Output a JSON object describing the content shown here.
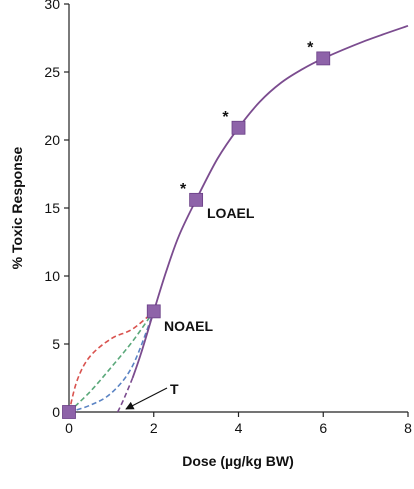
{
  "chart_data": {
    "type": "line",
    "xlabel": "Dose (µg/kg BW)",
    "ylabel": "% Toxic Response",
    "xlim": [
      0,
      8
    ],
    "ylim": [
      0,
      30
    ],
    "x_ticks": [
      "0",
      "2",
      "4",
      "6",
      "8"
    ],
    "y_ticks": [
      "0",
      "5",
      "10",
      "15",
      "20",
      "25",
      "30"
    ],
    "grid": false,
    "points": [
      {
        "x": 0,
        "y": 0,
        "star": false
      },
      {
        "x": 2,
        "y": 7.4,
        "star": false
      },
      {
        "x": 3,
        "y": 15.6,
        "star": true
      },
      {
        "x": 4,
        "y": 20.9,
        "star": true
      },
      {
        "x": 6,
        "y": 26,
        "star": true
      }
    ],
    "main_curve": [
      [
        1.15,
        0
      ],
      [
        1.3,
        1.0
      ],
      [
        1.5,
        2.5
      ],
      [
        1.7,
        4.3
      ],
      [
        2.0,
        7.4
      ],
      [
        2.3,
        10.4
      ],
      [
        2.6,
        13.0
      ],
      [
        3.0,
        15.6
      ],
      [
        3.5,
        18.6
      ],
      [
        4.0,
        20.9
      ],
      [
        4.5,
        22.8
      ],
      [
        5.0,
        24.2
      ],
      [
        5.5,
        25.2
      ],
      [
        6.0,
        26.0
      ],
      [
        7.0,
        27.3
      ],
      [
        8.0,
        28.4
      ]
    ],
    "dashed_curves": [
      {
        "color": "#d9534f",
        "points": [
          [
            0,
            0
          ],
          [
            0.2,
            2.4
          ],
          [
            0.5,
            4.1
          ],
          [
            1.0,
            5.4
          ],
          [
            1.5,
            6.1
          ],
          [
            2.0,
            7.4
          ]
        ]
      },
      {
        "color": "#5aa87a",
        "points": [
          [
            0,
            0
          ],
          [
            0.5,
            1.5
          ],
          [
            1.0,
            3.3
          ],
          [
            1.5,
            5.2
          ],
          [
            2.0,
            7.4
          ]
        ]
      },
      {
        "color": "#5b84c4",
        "points": [
          [
            0,
            0
          ],
          [
            0.5,
            0.5
          ],
          [
            1.0,
            1.4
          ],
          [
            1.5,
            3.4
          ],
          [
            2.0,
            7.4
          ]
        ]
      }
    ],
    "main_color": "#7b4c8f",
    "marker_color": "#8e63a9",
    "annotations": {
      "loael": "LOAEL",
      "noael": "NOAEL",
      "threshold": "T",
      "star": "*"
    }
  }
}
